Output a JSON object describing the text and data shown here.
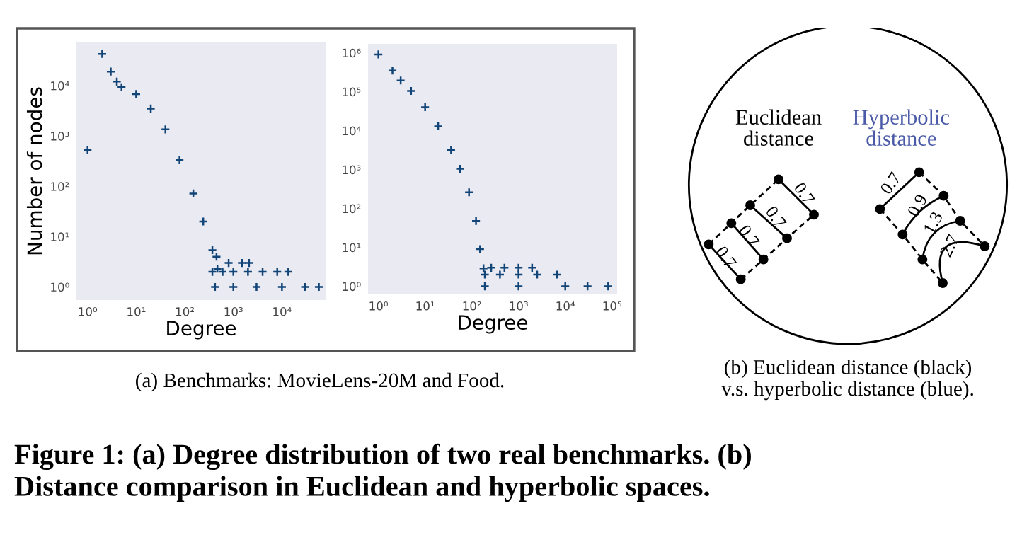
{
  "chart_data": [
    {
      "type": "scatter",
      "xlabel": "Degree",
      "ylabel": "Number of nodes",
      "log": "xy",
      "marker": "cross",
      "grid": false,
      "xlim": [
        0.59,
        79000
      ],
      "ylim": [
        0.55,
        72000
      ],
      "xticks": [
        {
          "value": 1,
          "label": "10⁰"
        },
        {
          "value": 10,
          "label": "10¹"
        },
        {
          "value": 100,
          "label": "10²"
        },
        {
          "value": 1000,
          "label": "10³"
        },
        {
          "value": 10000,
          "label": "10⁴"
        }
      ],
      "yticks": [
        {
          "value": 1,
          "label": "10⁰"
        },
        {
          "value": 10,
          "label": "10¹"
        },
        {
          "value": 100,
          "label": "10²"
        },
        {
          "value": 1000,
          "label": "10³"
        },
        {
          "value": 10000,
          "label": "10⁴"
        }
      ],
      "series": [
        {
          "color": "#114477",
          "x": [
            1,
            2,
            3,
            4,
            5,
            10,
            20,
            40,
            78,
            150,
            240,
            370,
            470,
            450,
            800,
            1500,
            2100,
            370,
            600,
            1000,
            2000,
            4000,
            8000,
            13500,
            420,
            1000,
            3000,
            10000,
            30000,
            57500
          ],
          "values": [
            525,
            42700,
            19000,
            12000,
            9300,
            6800,
            3500,
            1350,
            330,
            72,
            20,
            5.4,
            2.3,
            4,
            3,
            3,
            3,
            2,
            2,
            2,
            2,
            2,
            2,
            2,
            1,
            1,
            1,
            1,
            1,
            1
          ]
        }
      ],
      "annotations": [
        "(a) Benchmarks: MovieLens-20M and Food."
      ]
    },
    {
      "type": "scatter",
      "xlabel": "Degree",
      "log": "xy",
      "marker": "cross",
      "grid": false,
      "xlim": [
        0.6,
        129000
      ],
      "ylim": [
        0.62,
        1700000
      ],
      "xticks": [
        {
          "value": 1,
          "label": "10⁰"
        },
        {
          "value": 10,
          "label": "10¹"
        },
        {
          "value": 100,
          "label": "10²"
        },
        {
          "value": 1000,
          "label": "10³"
        },
        {
          "value": 10000,
          "label": "10⁴"
        },
        {
          "value": 100000,
          "label": "10⁵"
        }
      ],
      "yticks": [
        {
          "value": 1,
          "label": "10⁰"
        },
        {
          "value": 10,
          "label": "10¹"
        },
        {
          "value": 100,
          "label": "10²"
        },
        {
          "value": 1000,
          "label": "10³"
        },
        {
          "value": 10000,
          "label": "10⁴"
        },
        {
          "value": 100000,
          "label": "10⁵"
        },
        {
          "value": 1000000,
          "label": "10⁶"
        }
      ],
      "series": [
        {
          "color": "#114477",
          "x": [
            1,
            2,
            3,
            5,
            10,
            19,
            36,
            56,
            87,
            123,
            150,
            178,
            260,
            500,
            1000,
            1950,
            190,
            400,
            1000,
            2500,
            6600,
            190,
            1000,
            10000,
            30000,
            83000
          ],
          "values": [
            910000,
            350000,
            195000,
            105000,
            40000,
            13000,
            3200,
            1050,
            260,
            48,
            9,
            2.9,
            3,
            3,
            3,
            3,
            2,
            2,
            2,
            2,
            2,
            1,
            1,
            1,
            1,
            1
          ]
        }
      ]
    },
    {
      "type": "other",
      "annotations": [
        "Euclidean\ndistance",
        "Hyperbolic\ndistance",
        "0.7",
        "0.7",
        "0.7",
        "0.7",
        "0.7",
        "0.9",
        "1.3",
        "2.7",
        "(b) Euclidean distance (black)\nv.s. hyperbolic distance (blue).",
        "Figure 1: (a) Degree distribution of two real benchmarks. (b)\nDistance comparison in Euclidean and hyperbolic spaces."
      ]
    }
  ]
}
